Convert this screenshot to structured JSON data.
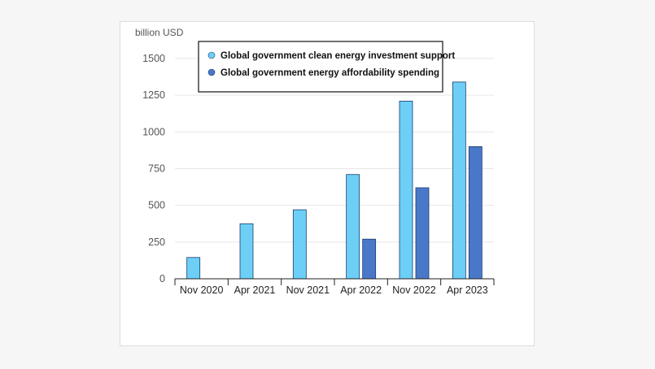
{
  "chart_data": {
    "type": "bar",
    "title": "",
    "ylabel": "billion USD",
    "xlabel": "",
    "categories": [
      "Nov 2020",
      "Apr 2021",
      "Nov 2021",
      "Apr 2022",
      "Nov 2022",
      "Apr 2023"
    ],
    "series": [
      {
        "name": "Global government clean energy investment support",
        "color": "#6dcff6",
        "values": [
          145,
          375,
          470,
          710,
          1210,
          1340
        ]
      },
      {
        "name": "Global government energy affordability spending",
        "color": "#4a78c9",
        "values": [
          null,
          null,
          null,
          270,
          620,
          900
        ]
      }
    ],
    "ylim": [
      0,
      1500
    ],
    "yticks": [
      0,
      250,
      500,
      750,
      1000,
      1250,
      1500
    ],
    "grid": true,
    "legend_position": "top-left"
  }
}
